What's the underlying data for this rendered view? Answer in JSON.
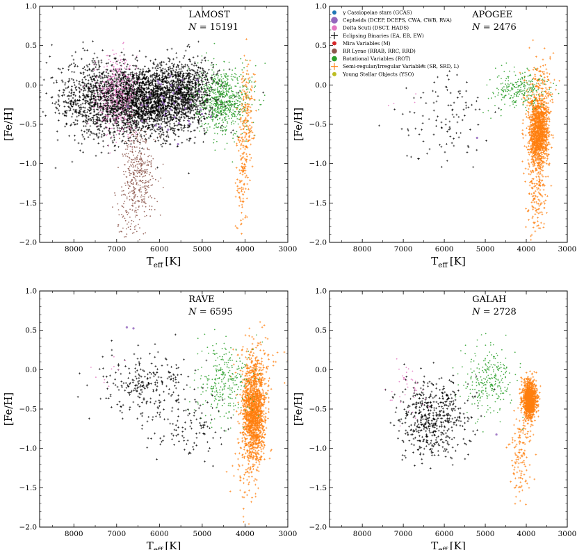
{
  "chart_data": [
    {
      "type": "scatter",
      "survey": "LAMOST",
      "count_label": "N = 15191",
      "xlabel": "T",
      "xlabel_sub": "eff",
      "xlabel_unit": "[K]",
      "ylabel": "[Fe/H]",
      "xlim": [
        8800,
        3000
      ],
      "ylim": [
        -2.0,
        1.0
      ],
      "xticks": [
        "8000",
        "7000",
        "6000",
        "5000",
        "4000",
        "3000"
      ],
      "yticks": [
        "1.0",
        "0.5",
        "0.0",
        "−0.5",
        "−1.0",
        "−1.5",
        "−2.0"
      ],
      "series": [
        {
          "name": "Eclipsing Binaries (EA, EB, EW)",
          "clusters": [
            {
              "teff": 6400,
              "feh": -0.2,
              "sd_teff": 700,
              "sd_feh": 0.22,
              "n": 2600
            },
            {
              "teff": 7600,
              "feh": -0.2,
              "sd_teff": 500,
              "sd_feh": 0.25,
              "n": 500
            },
            {
              "teff": 5400,
              "feh": -0.05,
              "sd_teff": 350,
              "sd_feh": 0.2,
              "n": 600
            }
          ]
        },
        {
          "name": "Delta Scuti (DSCT, HADS)",
          "clusters": [
            {
              "teff": 7000,
              "feh": -0.15,
              "sd_teff": 260,
              "sd_feh": 0.25,
              "n": 420
            }
          ]
        },
        {
          "name": "RR Lyrae (RRAB, RRC, RRD)",
          "clusters": [
            {
              "teff": 6500,
              "feh": -1.1,
              "sd_teff": 200,
              "sd_feh": 0.28,
              "n": 380
            },
            {
              "teff": 6650,
              "feh": -1.6,
              "sd_teff": 180,
              "sd_feh": 0.2,
              "n": 70
            }
          ]
        },
        {
          "name": "Rotational Variables (ROT)",
          "clusters": [
            {
              "teff": 4500,
              "feh": -0.2,
              "sd_teff": 300,
              "sd_feh": 0.22,
              "n": 700
            }
          ]
        },
        {
          "name": "Semi-regular/Irregular Variables (SR, SRD, L)",
          "clusters": [
            {
              "teff": 3950,
              "feh": -0.3,
              "sd_teff": 90,
              "sd_feh": 0.3,
              "n": 150
            },
            {
              "teff": 4050,
              "feh": -1.2,
              "sd_teff": 80,
              "sd_feh": 0.35,
              "n": 120
            }
          ]
        },
        {
          "name": "Cepheids (DCEP, DCEPS, CWA, CWB, RVA)",
          "clusters": [
            {
              "teff": 5800,
              "feh": -0.2,
              "sd_teff": 500,
              "sd_feh": 0.2,
              "n": 40
            }
          ]
        }
      ]
    },
    {
      "type": "scatter",
      "survey": "APOGEE",
      "count_label": "N = 2476",
      "xlabel": "T",
      "xlabel_sub": "eff",
      "xlabel_unit": "[K]",
      "ylabel": "[Fe/H]",
      "xlim": [
        8800,
        3000
      ],
      "ylim": [
        -2.0,
        1.0
      ],
      "xticks": [
        "8000",
        "7000",
        "6000",
        "5000",
        "4000",
        "3000"
      ],
      "yticks": [
        "1.0",
        "0.5",
        "0.0",
        "−0.5",
        "−1.0",
        "−1.5",
        "−2.0"
      ],
      "series": [
        {
          "name": "Semi-regular/Irregular Variables (SR, SRD, L)",
          "clusters": [
            {
              "teff": 3700,
              "feh": -0.6,
              "sd_teff": 120,
              "sd_feh": 0.22,
              "n": 1300
            },
            {
              "teff": 3750,
              "feh": -1.3,
              "sd_teff": 110,
              "sd_feh": 0.3,
              "n": 160
            },
            {
              "teff": 3650,
              "feh": 0.0,
              "sd_teff": 200,
              "sd_feh": 0.18,
              "n": 120
            }
          ]
        },
        {
          "name": "Rotational Variables (ROT)",
          "clusters": [
            {
              "teff": 4200,
              "feh": -0.05,
              "sd_teff": 350,
              "sd_feh": 0.12,
              "n": 260
            }
          ]
        },
        {
          "name": "Eclipsing Binaries (EA, EB, EW)",
          "clusters": [
            {
              "teff": 6000,
              "feh": -0.45,
              "sd_teff": 600,
              "sd_feh": 0.3,
              "n": 110
            }
          ]
        },
        {
          "name": "Delta Scuti (DSCT, HADS)",
          "clusters": [
            {
              "teff": 7000,
              "feh": -0.2,
              "sd_teff": 250,
              "sd_feh": 0.2,
              "n": 4
            }
          ]
        },
        {
          "name": "Cepheids (DCEP, DCEPS, CWA, CWB, RVA)",
          "clusters": [
            {
              "teff": 5200,
              "feh": -0.66,
              "sd_teff": 10,
              "sd_feh": 0.01,
              "n": 1
            }
          ]
        }
      ]
    },
    {
      "type": "scatter",
      "survey": "RAVE",
      "count_label": "N = 6595",
      "xlabel": "T",
      "xlabel_sub": "eff",
      "xlabel_unit": "[K]",
      "ylabel": "[Fe/H]",
      "xlim": [
        8800,
        3000
      ],
      "ylim": [
        -2.0,
        1.0
      ],
      "xticks": [
        "8000",
        "7000",
        "6000",
        "5000",
        "4000",
        "3000"
      ],
      "yticks": [
        "1.0",
        "0.5",
        "0.0",
        "−0.5",
        "−1.0",
        "−1.5",
        "−2.0"
      ],
      "series": [
        {
          "name": "Semi-regular/Irregular Variables (SR, SRD, L)",
          "clusters": [
            {
              "teff": 3800,
              "feh": -0.55,
              "sd_teff": 130,
              "sd_feh": 0.3,
              "n": 1500
            },
            {
              "teff": 4000,
              "feh": -1.35,
              "sd_teff": 150,
              "sd_feh": 0.25,
              "n": 60
            },
            {
              "teff": 3700,
              "feh": 0.1,
              "sd_teff": 250,
              "sd_feh": 0.2,
              "n": 90
            }
          ]
        },
        {
          "name": "Rotational Variables (ROT)",
          "clusters": [
            {
              "teff": 4500,
              "feh": -0.15,
              "sd_teff": 320,
              "sd_feh": 0.25,
              "n": 300
            }
          ]
        },
        {
          "name": "Eclipsing Binaries (EA, EB, EW)",
          "clusters": [
            {
              "teff": 6400,
              "feh": -0.2,
              "sd_teff": 500,
              "sd_feh": 0.22,
              "n": 240
            },
            {
              "teff": 5300,
              "feh": -0.7,
              "sd_teff": 400,
              "sd_feh": 0.22,
              "n": 110
            }
          ]
        },
        {
          "name": "Delta Scuti (DSCT, HADS)",
          "clusters": [
            {
              "teff": 7100,
              "feh": 0.0,
              "sd_teff": 200,
              "sd_feh": 0.15,
              "n": 10
            }
          ]
        },
        {
          "name": "Cepheids (DCEP, DCEPS, CWA, CWB, RVA)",
          "clusters": [
            {
              "teff": 6500,
              "feh": 0.55,
              "sd_teff": 100,
              "sd_feh": 0.05,
              "n": 2
            }
          ]
        }
      ]
    },
    {
      "type": "scatter",
      "survey": "GALAH",
      "count_label": "N = 2728",
      "xlabel": "T",
      "xlabel_sub": "eff",
      "xlabel_unit": "[K]",
      "ylabel": "[Fe/H]",
      "xlim": [
        8800,
        3000
      ],
      "ylim": [
        -2.0,
        1.0
      ],
      "xticks": [
        "8000",
        "7000",
        "6000",
        "5000",
        "4000",
        "3000"
      ],
      "yticks": [
        "1.0",
        "0.5",
        "0.0",
        "−0.5",
        "−1.0",
        "−1.5",
        "−2.0"
      ],
      "series": [
        {
          "name": "Semi-regular/Irregular Variables (SR, SRD, L)",
          "clusters": [
            {
              "teff": 3920,
              "feh": -0.38,
              "sd_teff": 85,
              "sd_feh": 0.12,
              "n": 1050
            },
            {
              "teff": 4150,
              "feh": -1.1,
              "sd_teff": 110,
              "sd_feh": 0.28,
              "n": 130
            }
          ]
        },
        {
          "name": "Rotational Variables (ROT)",
          "clusters": [
            {
              "teff": 4900,
              "feh": -0.15,
              "sd_teff": 320,
              "sd_feh": 0.22,
              "n": 260
            }
          ]
        },
        {
          "name": "Eclipsing Binaries (EA, EB, EW)",
          "clusters": [
            {
              "teff": 6300,
              "feh": -0.6,
              "sd_teff": 420,
              "sd_feh": 0.25,
              "n": 520
            }
          ]
        },
        {
          "name": "Delta Scuti (DSCT, HADS)",
          "clusters": [
            {
              "teff": 6900,
              "feh": -0.25,
              "sd_teff": 230,
              "sd_feh": 0.15,
              "n": 40
            }
          ]
        },
        {
          "name": "Cepheids (DCEP, DCEPS, CWA, CWB, RVA)",
          "clusters": [
            {
              "teff": 4700,
              "feh": -0.85,
              "sd_teff": 20,
              "sd_feh": 0.02,
              "n": 1
            }
          ]
        }
      ]
    }
  ],
  "legend": {
    "location": "top-left of APOGEE panel",
    "entries": [
      {
        "label": "γ Cassiopeiae stars (GCAS)",
        "color": "#1f77b4",
        "marker": "circle-small"
      },
      {
        "label": "Cepheids (DCEP, DCEPS, CWA, CWB, RVA)",
        "color": "#9467bd",
        "marker": "circle-large"
      },
      {
        "label": "Delta Scuti (DSCT, HADS)",
        "color": "#e377c2",
        "marker": "circle"
      },
      {
        "label": "Eclipsing Binaries (EA, EB, EW)",
        "color": "#000000",
        "marker": "plus"
      },
      {
        "label": "Mira Variables (M)",
        "color": "#d62728",
        "marker": "circle-small"
      },
      {
        "label": "RR Lyrae (RRAB, RRC, RRD)",
        "color": "#8c564b",
        "marker": "circle"
      },
      {
        "label": "Rotational Variables (ROT)",
        "color": "#2ca02c",
        "marker": "circle"
      },
      {
        "label": "Semi-regular/Irregular Variables (SR, SRD, L)",
        "color": "#ff7f0e",
        "marker": "plus"
      },
      {
        "label": "Young Stellar Objects (YSO)",
        "color": "#bcbd22",
        "marker": "circle-small"
      }
    ]
  }
}
